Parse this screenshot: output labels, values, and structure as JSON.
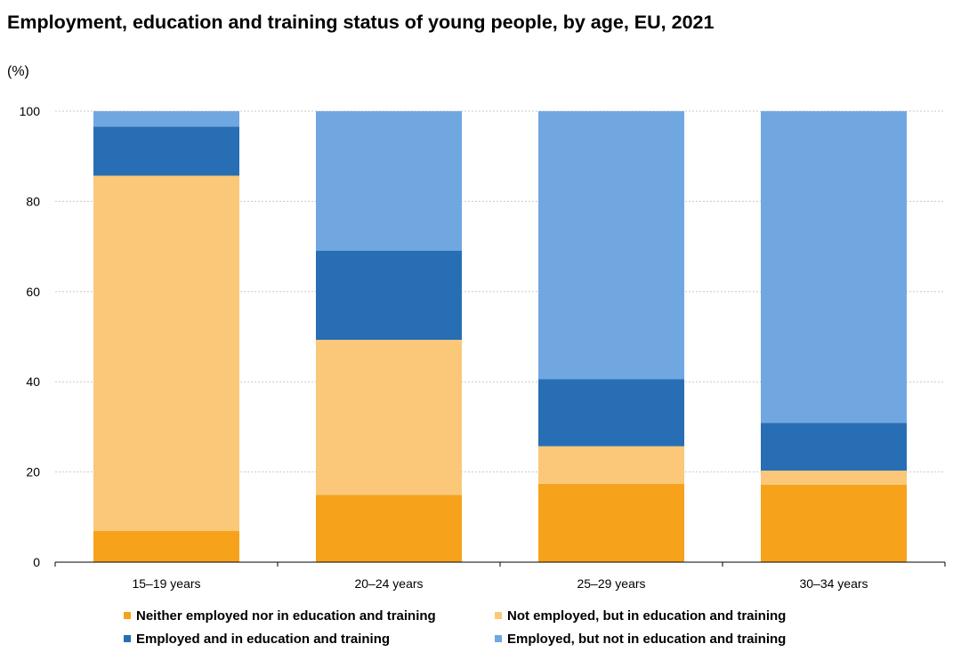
{
  "chart": {
    "title": "Employment, education and training status of young people, by age, EU, 2021",
    "unit": "(%)"
  },
  "chart_data": {
    "type": "bar",
    "stacked": true,
    "categories": [
      "15–19 years",
      "20–24 years",
      "25–29 years",
      "30–34 years"
    ],
    "series": [
      {
        "name": "Neither employed nor in education and training",
        "color": "#f7a21b",
        "values": [
          6.9,
          14.9,
          17.4,
          17.2
        ]
      },
      {
        "name": "Not employed, but in education and training",
        "color": "#fac878",
        "values": [
          78.8,
          34.4,
          8.3,
          3.1
        ]
      },
      {
        "name": "Employed and in education and training",
        "color": "#286eb4",
        "values": [
          10.9,
          19.8,
          14.9,
          10.6
        ]
      },
      {
        "name": "Employed, but not in education and training",
        "color": "#71a7e0",
        "values": [
          3.4,
          30.9,
          59.4,
          69.1
        ]
      }
    ],
    "yticks": [
      0,
      20,
      40,
      60,
      80,
      100
    ],
    "ylim": [
      0,
      100
    ],
    "grid": true,
    "legend_position": "bottom"
  }
}
